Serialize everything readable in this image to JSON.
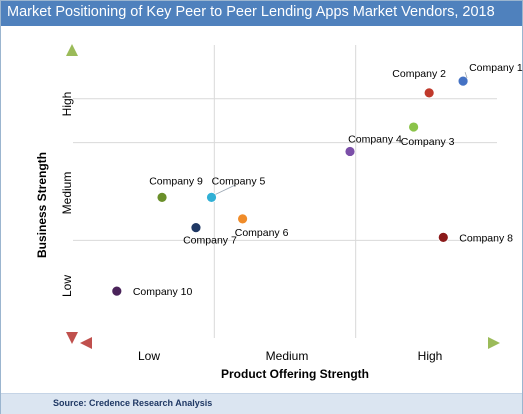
{
  "chart_data": {
    "type": "scatter",
    "title": "Market Positioning  of Key Peer to Peer Lending Apps Market Vendors, 2018",
    "xlabel": "Product Offering Strength",
    "ylabel": "Business Strength",
    "x_ticks": [
      "Low",
      "Medium",
      "High"
    ],
    "y_ticks": [
      "Low",
      "Medium",
      "High"
    ],
    "xlim": [
      0,
      3
    ],
    "ylim": [
      0,
      3
    ],
    "grid": true,
    "source": "Source: Credence Research Analysis",
    "points": [
      {
        "label": "Company 1",
        "x": 2.76,
        "y": 2.63,
        "color": "#4472c4"
      },
      {
        "label": "Company 2",
        "x": 2.52,
        "y": 2.51,
        "color": "#c0392b"
      },
      {
        "label": "Company 3",
        "x": 2.41,
        "y": 2.16,
        "color": "#8bc34a"
      },
      {
        "label": "Company 4",
        "x": 1.96,
        "y": 1.91,
        "color": "#7b4fa8"
      },
      {
        "label": "Company 5",
        "x": 0.98,
        "y": 1.44,
        "color": "#31b0d5"
      },
      {
        "label": "Company 6",
        "x": 1.2,
        "y": 1.22,
        "color": "#f08c2a"
      },
      {
        "label": "Company 7",
        "x": 0.87,
        "y": 1.13,
        "color": "#1f3864"
      },
      {
        "label": "Company 8",
        "x": 2.62,
        "y": 1.03,
        "color": "#8b1a1a"
      },
      {
        "label": "Company 9",
        "x": 0.63,
        "y": 1.44,
        "color": "#6a8f2a"
      },
      {
        "label": "Company 10",
        "x": 0.31,
        "y": 0.48,
        "color": "#4a235a"
      }
    ]
  }
}
